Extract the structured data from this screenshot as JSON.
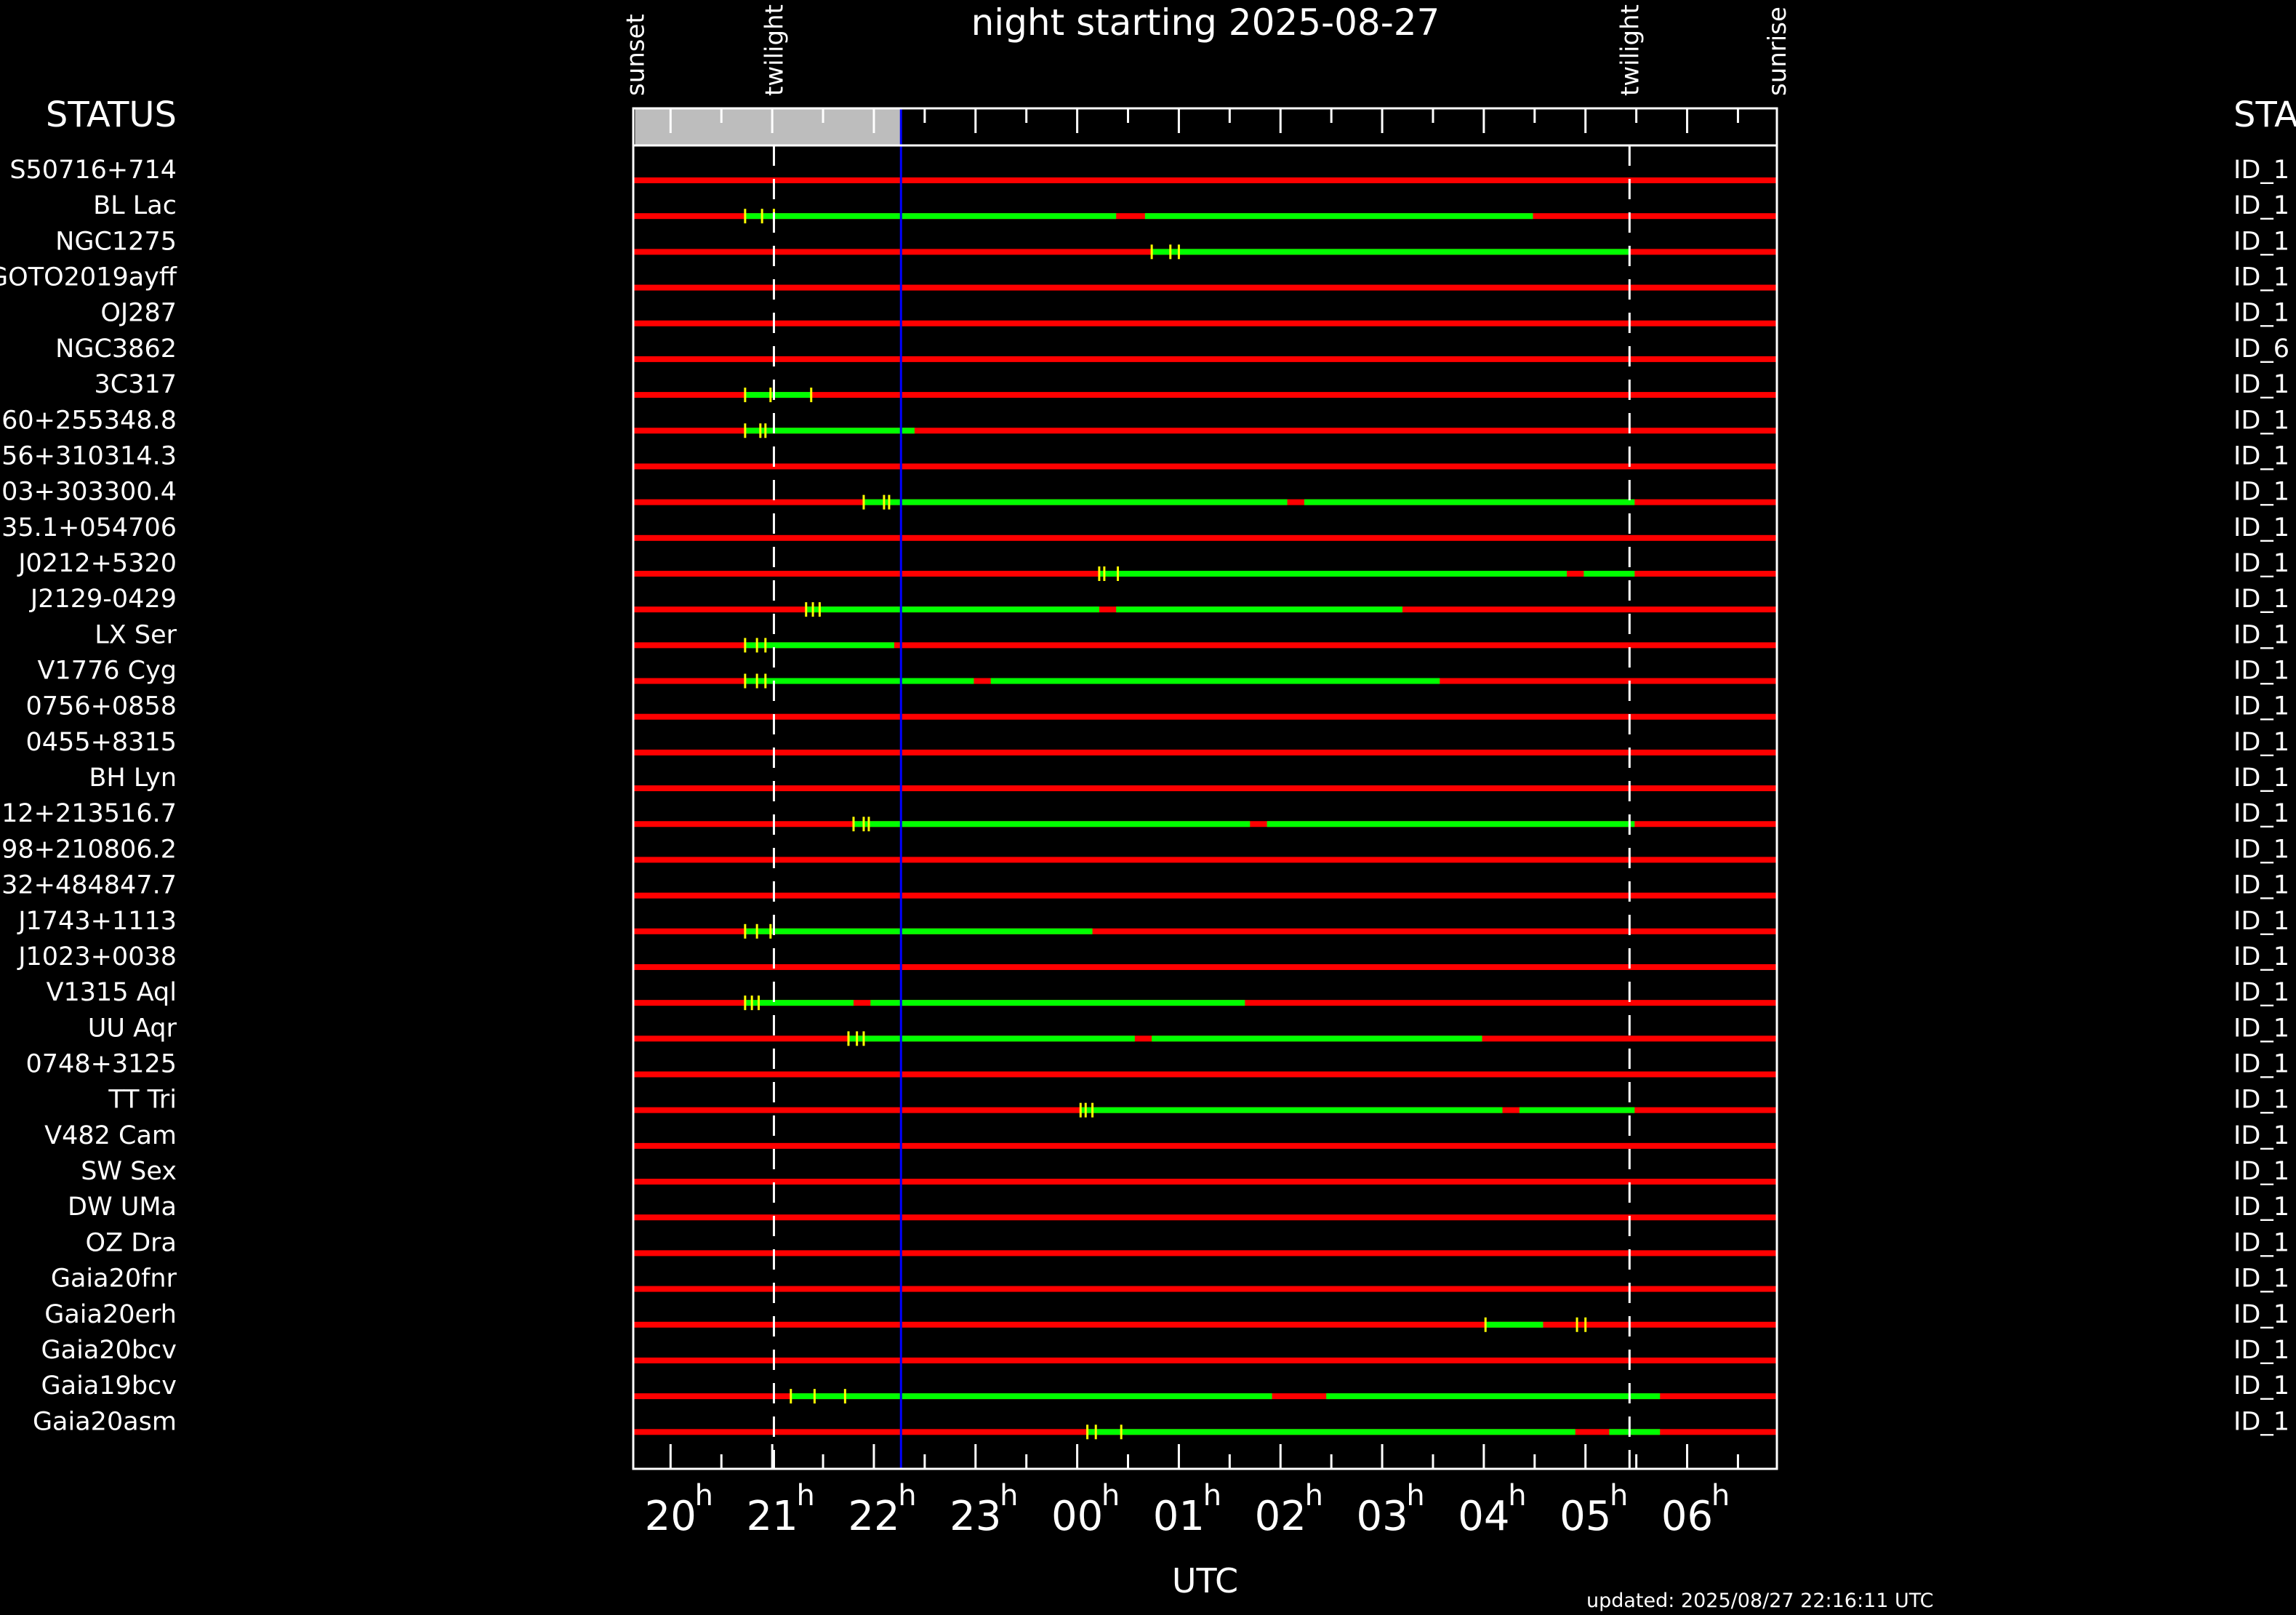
{
  "chart_data": {
    "type": "timeline",
    "title": "night starting 2025-08-27",
    "xlabel": "UTC",
    "x_unit": "hours UTC",
    "xlim": [
      19.633,
      6.883
    ],
    "xticks": [
      "20",
      "21",
      "22",
      "23",
      "00",
      "01",
      "02",
      "03",
      "04",
      "05",
      "06"
    ],
    "tick_suffix": "h",
    "left_header": "STATUS",
    "right_header": "STA",
    "markers": [
      {
        "label": "sunset",
        "time": "19:39"
      },
      {
        "label": "twilight",
        "time": "21:01",
        "dashed": true
      },
      {
        "label": "twilight",
        "time": "05:26",
        "dashed": true
      },
      {
        "label": "sunrise",
        "time": "06:53"
      }
    ],
    "current_time": "22:16",
    "elapsed_shading": {
      "from": "19:39",
      "to": "22:16",
      "color": "#bdbdbd"
    },
    "colors": {
      "unobservable": "#ff0000",
      "observable": "#00ff00",
      "tick": "#ffff00",
      "now_line": "#0000ff"
    },
    "rows": [
      {
        "name": "S50716+714",
        "id": "ID_1",
        "windows": [],
        "ticks": []
      },
      {
        "name": "BL Lac",
        "id": "ID_1",
        "windows": [
          [
            "20:44",
            "00:23"
          ],
          [
            "00:40",
            "04:29"
          ]
        ],
        "ticks": [
          "20:44",
          "20:54",
          "21:01"
        ]
      },
      {
        "name": "NGC1275",
        "id": "ID_1",
        "windows": [
          [
            "00:44",
            "05:26"
          ]
        ],
        "ticks": [
          "00:44",
          "00:55",
          "01:00"
        ]
      },
      {
        "name": "GOTO2019ayff",
        "id": "ID_1",
        "windows": [],
        "ticks": []
      },
      {
        "name": "OJ287",
        "id": "ID_1",
        "windows": [],
        "ticks": []
      },
      {
        "name": "NGC3862",
        "id": "ID_6",
        "windows": [],
        "ticks": []
      },
      {
        "name": "3C317",
        "id": "ID_1",
        "windows": [
          [
            "20:44",
            "21:23"
          ]
        ],
        "ticks": [
          "20:44",
          "20:59",
          "21:23"
        ]
      },
      {
        "name": "60+255348.8",
        "id": "ID_1",
        "windows": [
          [
            "20:44",
            "22:24"
          ]
        ],
        "ticks": [
          "20:44",
          "20:53",
          "20:56"
        ]
      },
      {
        "name": "56+310314.3",
        "id": "ID_1",
        "windows": [],
        "ticks": []
      },
      {
        "name": "03+303300.4",
        "id": "ID_1",
        "windows": [
          [
            "21:54",
            "02:04"
          ],
          [
            "02:14",
            "05:29"
          ]
        ],
        "ticks": [
          "21:54",
          "22:06",
          "22:09"
        ]
      },
      {
        "name": "35.1+054706",
        "id": "ID_1",
        "windows": [],
        "ticks": []
      },
      {
        "name": "J0212+5320",
        "id": "ID_1",
        "windows": [
          [
            "00:13",
            "04:49"
          ],
          [
            "04:59",
            "05:29"
          ]
        ],
        "ticks": [
          "00:13",
          "00:16",
          "00:24"
        ]
      },
      {
        "name": "J2129-0429",
        "id": "ID_1",
        "windows": [
          [
            "21:20",
            "00:13"
          ],
          [
            "00:23",
            "03:12"
          ]
        ],
        "ticks": [
          "21:20",
          "21:24",
          "21:28"
        ]
      },
      {
        "name": "LX Ser",
        "id": "ID_1",
        "windows": [
          [
            "20:44",
            "22:12"
          ]
        ],
        "ticks": [
          "20:44",
          "20:51",
          "20:56"
        ]
      },
      {
        "name": "V1776 Cyg",
        "id": "ID_1",
        "windows": [
          [
            "20:44",
            "22:59"
          ],
          [
            "23:09",
            "03:34"
          ]
        ],
        "ticks": [
          "20:44",
          "20:51",
          "20:56"
        ]
      },
      {
        "name": "0756+0858",
        "id": "ID_1",
        "windows": [],
        "ticks": []
      },
      {
        "name": "0455+8315",
        "id": "ID_1",
        "windows": [],
        "ticks": []
      },
      {
        "name": "BH Lyn",
        "id": "ID_1",
        "windows": [],
        "ticks": []
      },
      {
        "name": "12+213516.7",
        "id": "ID_1",
        "windows": [
          [
            "21:48",
            "01:42"
          ],
          [
            "01:52",
            "05:29"
          ]
        ],
        "ticks": [
          "21:48",
          "21:54",
          "21:57"
        ]
      },
      {
        "name": "98+210806.2",
        "id": "ID_1",
        "windows": [],
        "ticks": []
      },
      {
        "name": "32+484847.7",
        "id": "ID_1",
        "windows": [],
        "ticks": []
      },
      {
        "name": "J1743+1113",
        "id": "ID_1",
        "windows": [
          [
            "20:44",
            "00:09"
          ]
        ],
        "ticks": [
          "20:44",
          "20:51",
          "20:59"
        ]
      },
      {
        "name": "J1023+0038",
        "id": "ID_1",
        "windows": [],
        "ticks": []
      },
      {
        "name": "V1315 Aql",
        "id": "ID_1",
        "windows": [
          [
            "20:44",
            "21:48"
          ],
          [
            "21:58",
            "01:39"
          ]
        ],
        "ticks": [
          "20:44",
          "20:48",
          "20:52"
        ]
      },
      {
        "name": "UU Aqr",
        "id": "ID_1",
        "windows": [
          [
            "21:45",
            "00:34"
          ],
          [
            "00:44",
            "03:59"
          ]
        ],
        "ticks": [
          "21:45",
          "21:50",
          "21:54"
        ]
      },
      {
        "name": "0748+3125",
        "id": "ID_1",
        "windows": [],
        "ticks": []
      },
      {
        "name": "TT Tri",
        "id": "ID_1",
        "windows": [
          [
            "00:02",
            "04:11"
          ],
          [
            "04:21",
            "05:29"
          ]
        ],
        "ticks": [
          "00:02",
          "00:05",
          "00:09"
        ]
      },
      {
        "name": "V482 Cam",
        "id": "ID_1",
        "windows": [],
        "ticks": []
      },
      {
        "name": "SW Sex",
        "id": "ID_1",
        "windows": [],
        "ticks": []
      },
      {
        "name": "DW UMa",
        "id": "ID_1",
        "windows": [],
        "ticks": []
      },
      {
        "name": "OZ Dra",
        "id": "ID_1",
        "windows": [],
        "ticks": []
      },
      {
        "name": "Gaia20fnr",
        "id": "ID_1",
        "windows": [],
        "ticks": []
      },
      {
        "name": "Gaia20erh",
        "id": "ID_1",
        "windows": [
          [
            "04:01",
            "04:35"
          ]
        ],
        "ticks": [
          "04:01",
          "04:55",
          "05:00"
        ]
      },
      {
        "name": "Gaia20bcv",
        "id": "ID_1",
        "windows": [],
        "ticks": []
      },
      {
        "name": "Gaia19bcv",
        "id": "ID_1",
        "windows": [
          [
            "21:11",
            "01:55"
          ],
          [
            "02:27",
            "05:44"
          ]
        ],
        "ticks": [
          "21:11",
          "21:25",
          "21:43"
        ]
      },
      {
        "name": "Gaia20asm",
        "id": "ID_1",
        "windows": [
          [
            "00:06",
            "04:54"
          ],
          [
            "05:14",
            "05:44"
          ]
        ],
        "ticks": [
          "00:06",
          "00:11",
          "00:26"
        ]
      }
    ]
  },
  "footer": {
    "updated": "updated: 2025/08/27 22:16:11 UTC"
  }
}
